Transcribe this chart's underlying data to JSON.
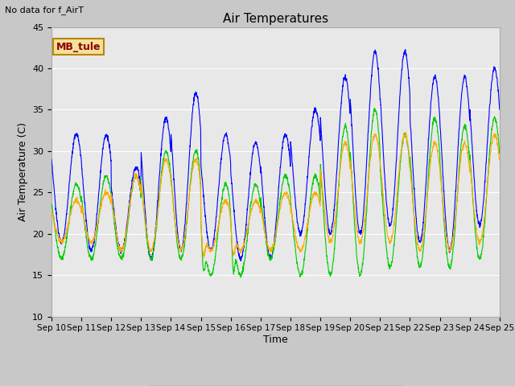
{
  "title": "Air Temperatures",
  "ylabel": "Air Temperature (C)",
  "xlabel": "Time",
  "note": "No data for f_AirT",
  "mb_tule_label": "MB_tule",
  "ylim": [
    10,
    45
  ],
  "plot_bg_color": "#e8e8e8",
  "line_colors": {
    "li75_t": "#0000ff",
    "li77_temp": "#00cc00",
    "Tsonic": "#ffaa00"
  },
  "x_tick_labels": [
    "Sep 10",
    "Sep 11",
    "Sep 12",
    "Sep 13",
    "Sep 14",
    "Sep 15",
    "Sep 16",
    "Sep 17",
    "Sep 18",
    "Sep 19",
    "Sep 20",
    "Sep 21",
    "Sep 22",
    "Sep 23",
    "Sep 24",
    "Sep 25"
  ],
  "num_days": 15,
  "points_per_day": 144
}
